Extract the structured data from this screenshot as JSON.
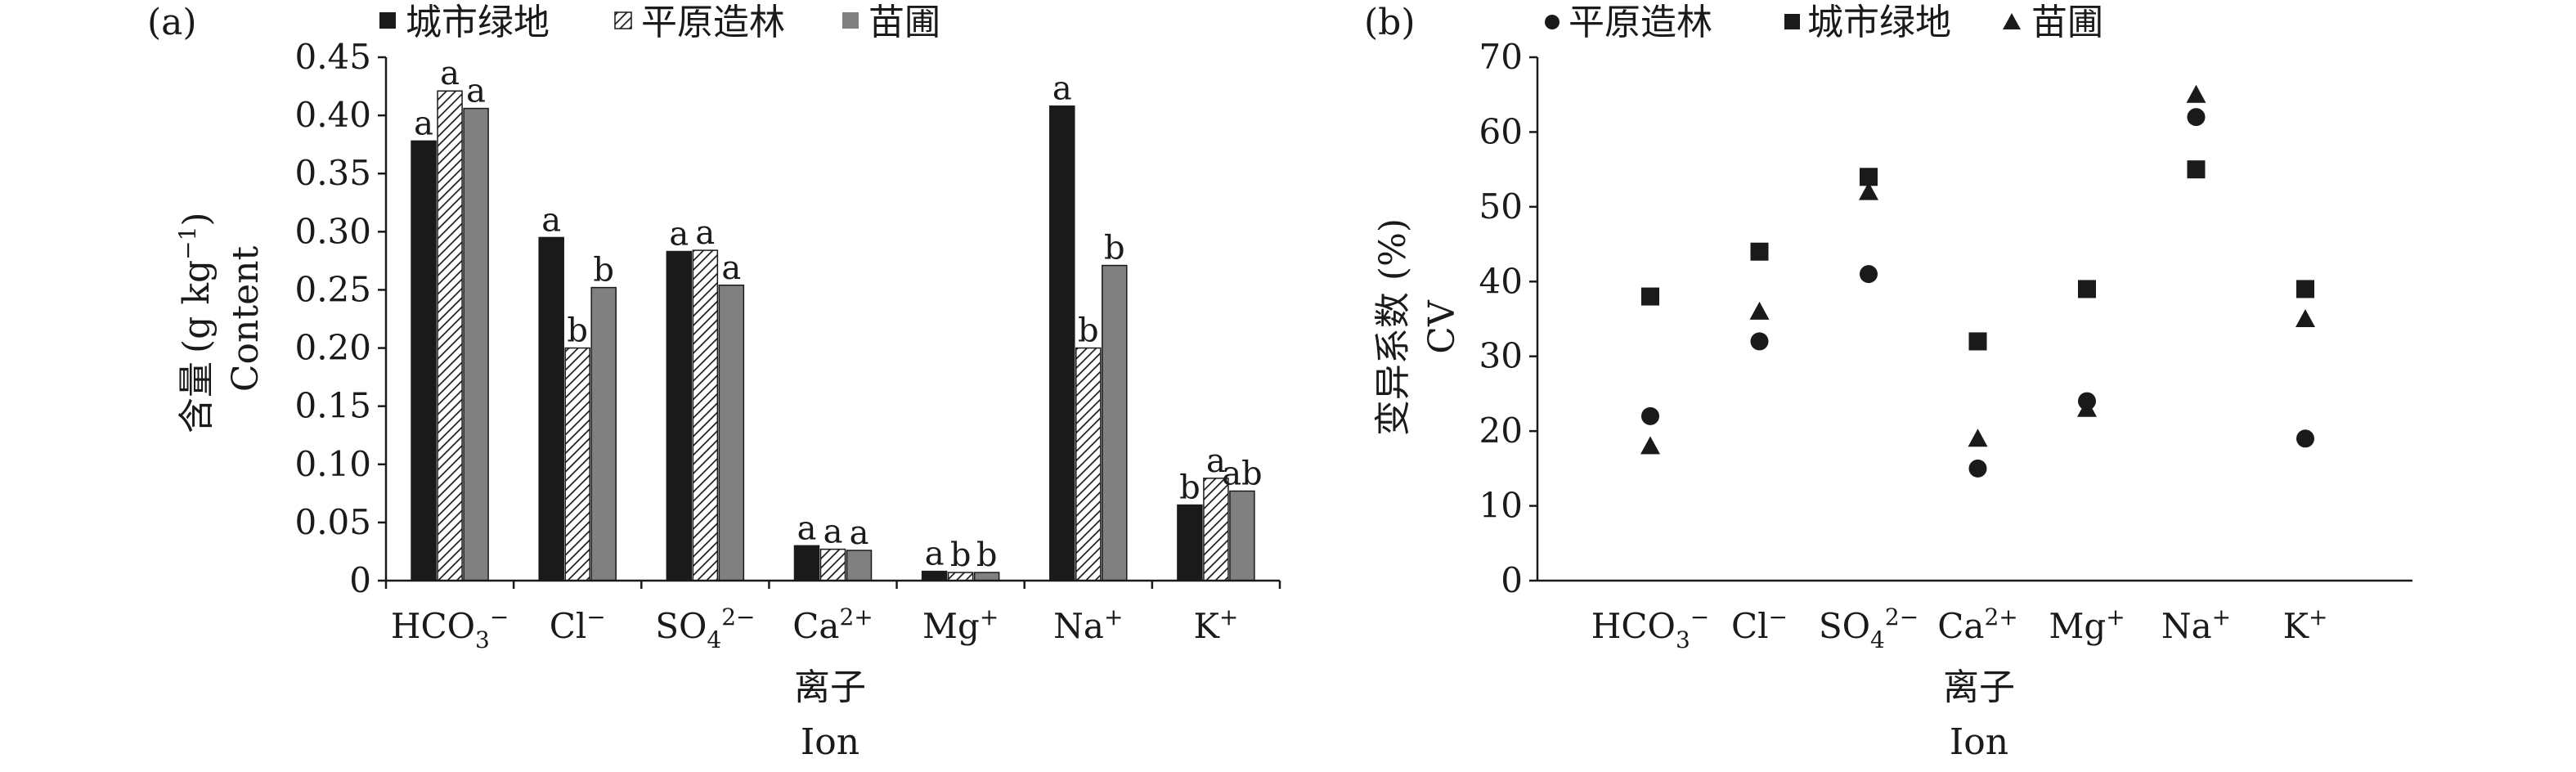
{
  "chart_data": [
    {
      "panel_label": "(a)",
      "type": "bar",
      "legend": [
        "城市绿地",
        "平原造林",
        "苗圃"
      ],
      "legend_placement": "top",
      "categories": [
        "HCO3-",
        "Cl-",
        "SO42-",
        "Ca2+",
        "Mg+",
        "Na+",
        "K+"
      ],
      "category_labels": [
        {
          "base": "HCO",
          "sub": "3",
          "sup": "−"
        },
        {
          "base": "Cl",
          "sub": "",
          "sup": "−"
        },
        {
          "base": "SO",
          "sub": "4",
          "sup": "2−"
        },
        {
          "base": "Ca",
          "sub": "",
          "sup": "2+"
        },
        {
          "base": "Mg",
          "sub": "",
          "sup": "+"
        },
        {
          "base": "Na",
          "sub": "",
          "sup": "+"
        },
        {
          "base": "K",
          "sub": "",
          "sup": "+"
        }
      ],
      "series": [
        {
          "name": "城市绿地",
          "style": "black",
          "values": [
            0.378,
            0.295,
            0.283,
            0.03,
            0.008,
            0.408,
            0.065
          ],
          "letters": [
            "a",
            "a",
            "a",
            "a",
            "a",
            "a",
            "b"
          ]
        },
        {
          "name": "平原造林",
          "style": "hatched",
          "values": [
            0.421,
            0.2,
            0.284,
            0.027,
            0.007,
            0.2,
            0.088
          ],
          "letters": [
            "a",
            "b",
            "a",
            "a",
            "b",
            "b",
            "a"
          ]
        },
        {
          "name": "苗圃",
          "style": "gray",
          "values": [
            0.406,
            0.252,
            0.254,
            0.026,
            0.007,
            0.271,
            0.077
          ],
          "letters": [
            "a",
            "b",
            "a",
            "a",
            "b",
            "b",
            "ab"
          ]
        }
      ],
      "ylabel_cn": "含量",
      "ylabel_unit": {
        "pre": "(g kg",
        "sup": "−1",
        "post": ")"
      },
      "ylabel_en": "Content",
      "xlabel_cn": "离子",
      "xlabel_en": "Ion",
      "ylim": [
        0,
        0.45
      ],
      "yticks": [
        "0",
        "0.05",
        "0.10",
        "0.15",
        "0.20",
        "0.25",
        "0.30",
        "0.35",
        "0.40",
        "0.45"
      ],
      "grid": false
    },
    {
      "panel_label": "(b)",
      "type": "scatter",
      "legend_placement": "top",
      "categories": [
        "HCO3-",
        "Cl-",
        "SO42-",
        "Ca2+",
        "Mg+",
        "Na+",
        "K+"
      ],
      "series": [
        {
          "name": "平原造林",
          "marker": "circle",
          "values": [
            22,
            32,
            41,
            15,
            24,
            62,
            19
          ]
        },
        {
          "name": "城市绿地",
          "marker": "square",
          "values": [
            38,
            44,
            54,
            32,
            39,
            55,
            39
          ]
        },
        {
          "name": "苗圃",
          "marker": "triangle",
          "values": [
            18,
            36,
            52,
            19,
            23,
            65,
            35
          ]
        }
      ],
      "ylabel_cn": "变异系数 (%)",
      "ylabel_en": "CV",
      "xlabel_cn": "离子",
      "xlabel_en": "Ion",
      "ylim": [
        0,
        70
      ],
      "yticks": [
        "0",
        "10",
        "20",
        "30",
        "40",
        "50",
        "60",
        "70"
      ],
      "grid": false
    }
  ],
  "colors": {
    "black": "#1a1a1a",
    "gray": "#808080",
    "white": "#ffffff"
  }
}
